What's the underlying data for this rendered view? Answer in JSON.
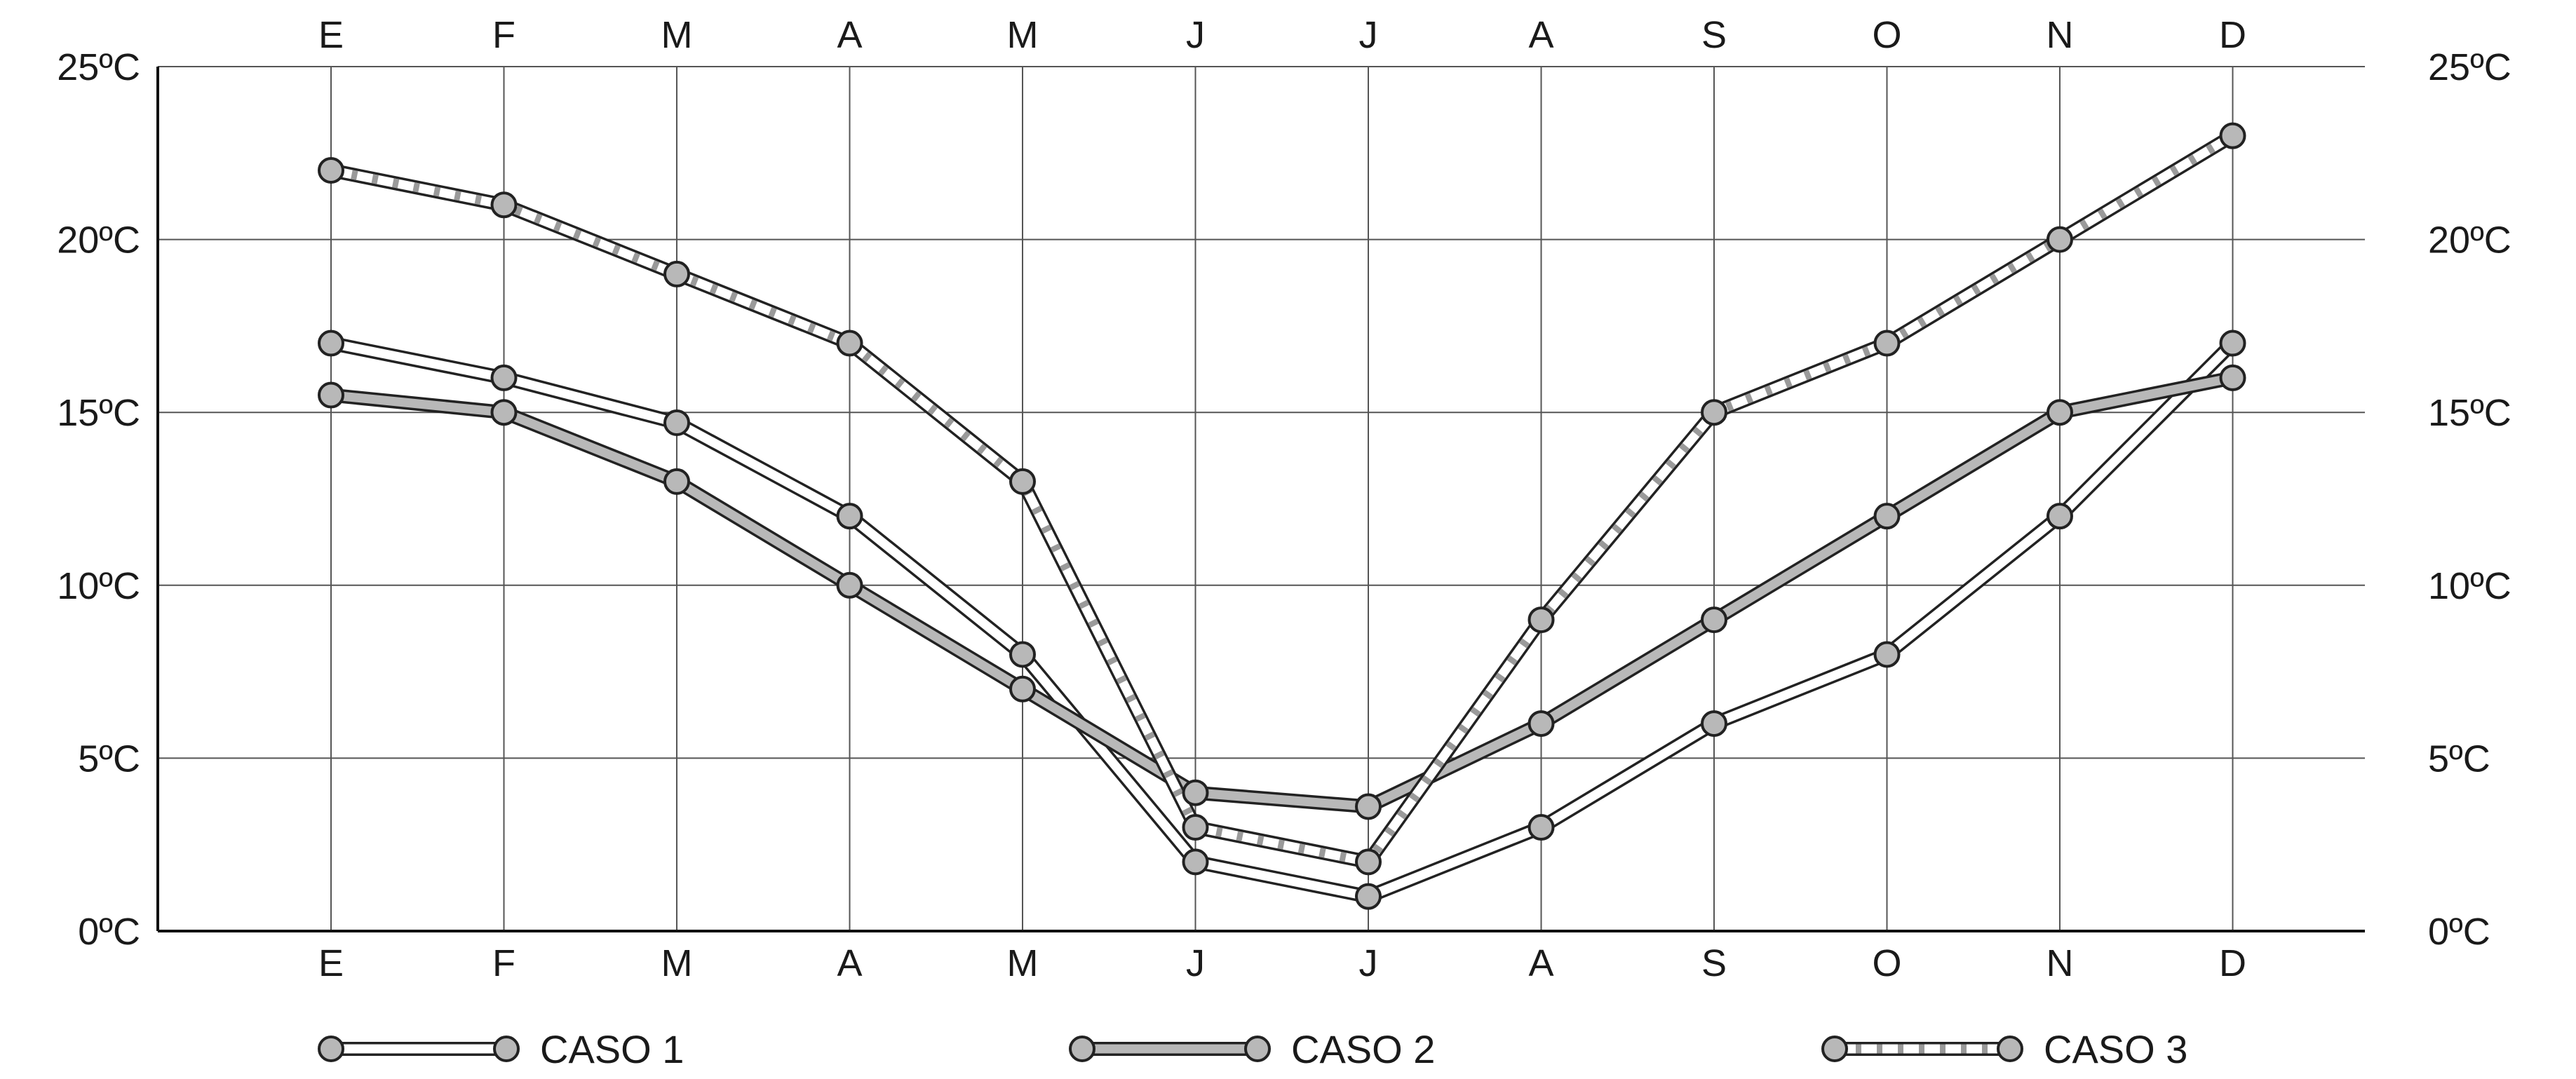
{
  "chart_data": {
    "type": "line",
    "categories": [
      "E",
      "F",
      "M",
      "A",
      "M",
      "J",
      "J",
      "A",
      "S",
      "O",
      "N",
      "D"
    ],
    "y_ticks": [
      "0ºC",
      "5ºC",
      "10ºC",
      "15ºC",
      "20ºC",
      "25ºC"
    ],
    "ylim": [
      0,
      25
    ],
    "grid": true,
    "legend_position": "bottom",
    "series": [
      {
        "name": "CASO 1",
        "style": "double-white",
        "values": [
          17,
          16,
          14.7,
          12,
          8,
          2,
          1,
          3,
          6,
          8,
          12,
          17
        ]
      },
      {
        "name": "CASO 2",
        "style": "solid-gray",
        "values": [
          15.5,
          15,
          13,
          10,
          7,
          4,
          3.6,
          6,
          9,
          12,
          15,
          16
        ]
      },
      {
        "name": "CASO 3",
        "style": "striped",
        "values": [
          22,
          21,
          19,
          17,
          13,
          3,
          2,
          9,
          15,
          17,
          20,
          23
        ]
      }
    ],
    "colors": {
      "marker_fill": "#b8b8b8",
      "stroke": "#222222",
      "grid": "#555555",
      "stripe": "#9a9a9a"
    }
  }
}
